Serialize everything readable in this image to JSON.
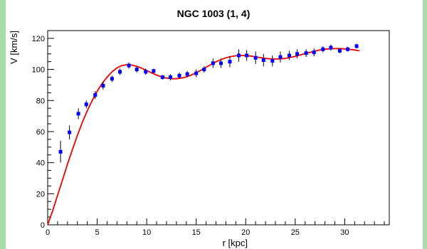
{
  "chart_data": {
    "type": "scatter",
    "title": "NGC 1003 (1, 4)",
    "xlabel": "r [kpc]",
    "ylabel": "V [km/s]",
    "xlim": [
      0,
      34.5
    ],
    "ylim": [
      0,
      125
    ],
    "xticks": [
      0,
      5,
      10,
      15,
      20,
      25,
      30
    ],
    "yticks": [
      0,
      20,
      40,
      60,
      80,
      100,
      120
    ],
    "grid": false,
    "series": [
      {
        "kind": "points_with_errorbars",
        "color": "#0000ff",
        "x": [
          1.3,
          2.2,
          3.1,
          3.9,
          4.8,
          5.6,
          6.5,
          7.3,
          8.2,
          9.0,
          9.9,
          10.7,
          11.6,
          12.4,
          13.3,
          14.1,
          15.0,
          15.8,
          16.7,
          17.5,
          18.4,
          19.3,
          20.1,
          21.0,
          21.8,
          22.7,
          23.5,
          24.4,
          25.2,
          26.1,
          26.9,
          27.8,
          28.6,
          29.5,
          30.3,
          31.2
        ],
        "y": [
          47,
          59.5,
          71.5,
          77.5,
          83.5,
          89.5,
          94,
          98.5,
          102.5,
          100,
          98.5,
          99,
          95,
          95,
          96,
          97,
          97.5,
          100,
          104,
          104,
          105,
          109,
          109,
          107.5,
          106,
          105.5,
          108,
          109,
          110,
          110.5,
          111,
          113,
          114,
          112,
          113,
          115
        ],
        "err": [
          7,
          4.5,
          3.5,
          2.5,
          2.5,
          2.5,
          2,
          2,
          2,
          2,
          2,
          1.5,
          1.5,
          2,
          2,
          2,
          2.5,
          2,
          3,
          3,
          3.5,
          4,
          3.5,
          4,
          4,
          3.5,
          3.5,
          3,
          3,
          2.5,
          2.5,
          2,
          2,
          1.5,
          1.5,
          1.5
        ]
      },
      {
        "kind": "fit_curve",
        "color": "#ee0000",
        "x": [
          0,
          0.5,
          1,
          1.5,
          2,
          2.5,
          3,
          3.5,
          4,
          4.5,
          5,
          5.5,
          6,
          6.5,
          7,
          7.5,
          8,
          8.5,
          9,
          9.5,
          10,
          10.5,
          11,
          11.5,
          12,
          12.5,
          13,
          13.5,
          14,
          14.5,
          15,
          15.5,
          16,
          16.5,
          17,
          17.5,
          18,
          18.5,
          19,
          19.5,
          20,
          20.5,
          21,
          21.5,
          22,
          22.5,
          23,
          23.5,
          24,
          24.5,
          25,
          25.5,
          26,
          26.5,
          27,
          27.5,
          28,
          28.5,
          29,
          29.5,
          30,
          30.5,
          31,
          31.5
        ],
        "y": [
          0,
          9,
          19,
          29,
          39,
          48.5,
          57.5,
          66,
          73.5,
          80,
          86,
          91,
          95,
          98.5,
          101,
          102.5,
          103,
          102.8,
          102,
          100.8,
          99.3,
          97.8,
          96.4,
          95.2,
          94.4,
          94.0,
          94.0,
          94.4,
          95.2,
          96.4,
          97.9,
          99.6,
          101.4,
          103.2,
          104.9,
          106.3,
          107.5,
          108.3,
          108.8,
          109.0,
          108.9,
          108.6,
          108.1,
          107.6,
          107.1,
          106.8,
          106.7,
          106.8,
          107.1,
          107.7,
          108.4,
          109.3,
          110.2,
          111.0,
          111.8,
          112.5,
          113.0,
          113.3,
          113.4,
          113.4,
          113.2,
          112.9,
          112.5,
          112.0
        ]
      }
    ]
  }
}
